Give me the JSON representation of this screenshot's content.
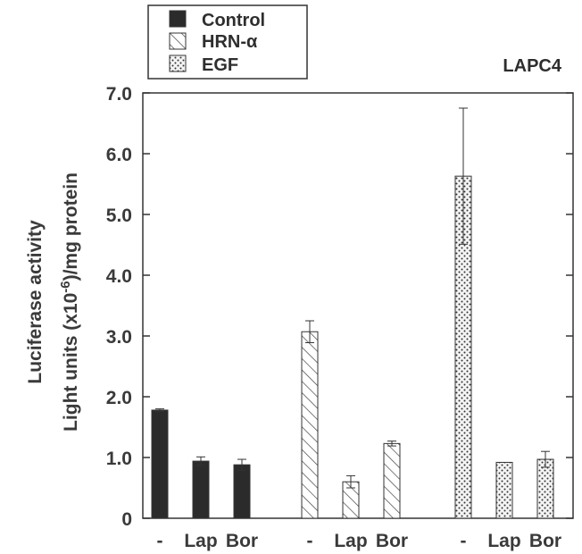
{
  "chart_data": {
    "type": "bar",
    "title": "",
    "annotation": "LAPC4",
    "ylabel_lines": [
      "Luciferase activity",
      "Light units (x10",
      "-6",
      ")/mg protein"
    ],
    "ylim": [
      0,
      7.0
    ],
    "yticks": [
      {
        "value": 0,
        "label": "0"
      },
      {
        "value": 1.0,
        "label": "1.0"
      },
      {
        "value": 2.0,
        "label": "2.0"
      },
      {
        "value": 3.0,
        "label": "3.0"
      },
      {
        "value": 4.0,
        "label": "4.0"
      },
      {
        "value": 5.0,
        "label": "5.0"
      },
      {
        "value": 6.0,
        "label": "6.0"
      },
      {
        "value": 7.0,
        "label": "7.0"
      }
    ],
    "categories": [
      "-",
      "Lap",
      "Bor"
    ],
    "legend_placement": "top-left",
    "series": [
      {
        "name": "Control",
        "pattern": "solid",
        "values": [
          1.78,
          0.94,
          0.88
        ],
        "errors": [
          0.02,
          0.07,
          0.09
        ]
      },
      {
        "name": "HRN-α",
        "pattern": "hatch",
        "values": [
          3.07,
          0.6,
          1.23
        ],
        "errors": [
          0.18,
          0.1,
          0.04
        ]
      },
      {
        "name": "EGF",
        "pattern": "dots",
        "values": [
          5.63,
          0.92,
          0.97
        ],
        "errors": [
          1.12,
          0.0,
          0.13
        ]
      }
    ],
    "colors": {
      "bar_dark": "#2b2b2b",
      "text": "#3a3a3a",
      "axis": "#333333"
    }
  }
}
